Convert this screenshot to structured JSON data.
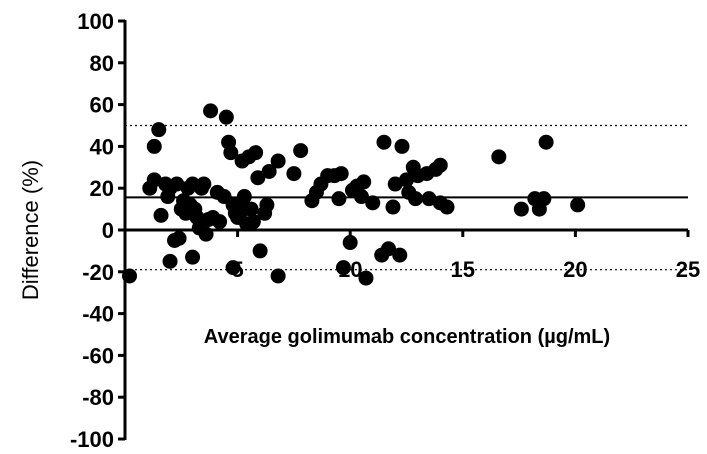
{
  "chart_data": {
    "type": "scatter",
    "xlabel": "Average golimumab concentration (µg/mL)",
    "ylabel": "Difference (%)",
    "xlim": [
      0,
      25
    ],
    "ylim": [
      -100,
      100
    ],
    "x_ticks": [
      5,
      10,
      15,
      20,
      25
    ],
    "y_ticks": [
      100,
      80,
      60,
      40,
      20,
      0,
      -20,
      -40,
      -60,
      -80,
      -100
    ],
    "x_tick_labels": [
      "5",
      "10",
      "15",
      "20",
      "25"
    ],
    "y_tick_labels": [
      "100",
      "80",
      "60",
      "40",
      "20",
      "0",
      "-20",
      "-40",
      "-60",
      "-80",
      "-100"
    ],
    "reference_lines": [
      {
        "y": 15.6,
        "style": "solid"
      },
      {
        "y": 50,
        "style": "dotted"
      },
      {
        "y": -19,
        "style": "dotted"
      }
    ],
    "grid": false,
    "marker_color": "#000000",
    "points": [
      {
        "x": 0.2,
        "y": -22
      },
      {
        "x": 1.1,
        "y": 20
      },
      {
        "x": 1.3,
        "y": 24
      },
      {
        "x": 1.3,
        "y": 40
      },
      {
        "x": 1.5,
        "y": 48
      },
      {
        "x": 1.6,
        "y": 7
      },
      {
        "x": 1.8,
        "y": 22
      },
      {
        "x": 1.9,
        "y": 16
      },
      {
        "x": 2.0,
        "y": 20
      },
      {
        "x": 2.0,
        "y": -15
      },
      {
        "x": 2.2,
        "y": -5
      },
      {
        "x": 2.3,
        "y": 22
      },
      {
        "x": 2.4,
        "y": -4
      },
      {
        "x": 2.5,
        "y": 10
      },
      {
        "x": 2.6,
        "y": 14
      },
      {
        "x": 2.7,
        "y": 8
      },
      {
        "x": 2.8,
        "y": 20
      },
      {
        "x": 2.9,
        "y": 12
      },
      {
        "x": 3.0,
        "y": 22
      },
      {
        "x": 3.0,
        "y": -13
      },
      {
        "x": 3.1,
        "y": 10
      },
      {
        "x": 3.2,
        "y": 6
      },
      {
        "x": 3.3,
        "y": 1
      },
      {
        "x": 3.4,
        "y": 20
      },
      {
        "x": 3.5,
        "y": 22
      },
      {
        "x": 3.6,
        "y": -2
      },
      {
        "x": 3.7,
        "y": 5
      },
      {
        "x": 3.8,
        "y": 57
      },
      {
        "x": 3.9,
        "y": 6
      },
      {
        "x": 4.1,
        "y": 18
      },
      {
        "x": 4.2,
        "y": 4
      },
      {
        "x": 4.4,
        "y": 16
      },
      {
        "x": 4.5,
        "y": 54
      },
      {
        "x": 4.6,
        "y": 42
      },
      {
        "x": 4.7,
        "y": 37
      },
      {
        "x": 4.8,
        "y": 12
      },
      {
        "x": 4.8,
        "y": -18
      },
      {
        "x": 4.9,
        "y": 8
      },
      {
        "x": 5.0,
        "y": 6
      },
      {
        "x": 5.1,
        "y": 12
      },
      {
        "x": 5.2,
        "y": 33
      },
      {
        "x": 5.3,
        "y": 16
      },
      {
        "x": 5.3,
        "y": 10
      },
      {
        "x": 5.4,
        "y": 3
      },
      {
        "x": 5.5,
        "y": 35
      },
      {
        "x": 5.6,
        "y": 10
      },
      {
        "x": 5.7,
        "y": 4
      },
      {
        "x": 5.8,
        "y": 37
      },
      {
        "x": 5.9,
        "y": 25
      },
      {
        "x": 6.0,
        "y": -10
      },
      {
        "x": 6.2,
        "y": 8
      },
      {
        "x": 6.3,
        "y": 12
      },
      {
        "x": 6.4,
        "y": 28
      },
      {
        "x": 6.8,
        "y": 33
      },
      {
        "x": 6.8,
        "y": -22
      },
      {
        "x": 7.5,
        "y": 27
      },
      {
        "x": 7.8,
        "y": 38
      },
      {
        "x": 8.3,
        "y": 14
      },
      {
        "x": 8.5,
        "y": 18
      },
      {
        "x": 8.7,
        "y": 22
      },
      {
        "x": 9.0,
        "y": 26
      },
      {
        "x": 9.3,
        "y": 26
      },
      {
        "x": 9.5,
        "y": 15
      },
      {
        "x": 9.6,
        "y": 27
      },
      {
        "x": 9.7,
        "y": -18
      },
      {
        "x": 10.0,
        "y": -6
      },
      {
        "x": 10.1,
        "y": 19
      },
      {
        "x": 10.3,
        "y": 21
      },
      {
        "x": 10.5,
        "y": 16
      },
      {
        "x": 10.6,
        "y": 23
      },
      {
        "x": 10.7,
        "y": -23
      },
      {
        "x": 11.0,
        "y": 13
      },
      {
        "x": 11.4,
        "y": -12
      },
      {
        "x": 11.5,
        "y": 42
      },
      {
        "x": 11.7,
        "y": -9
      },
      {
        "x": 11.9,
        "y": 11
      },
      {
        "x": 12.0,
        "y": 22
      },
      {
        "x": 12.2,
        "y": -12
      },
      {
        "x": 12.3,
        "y": 40
      },
      {
        "x": 12.5,
        "y": 24
      },
      {
        "x": 12.6,
        "y": 18
      },
      {
        "x": 12.8,
        "y": 30
      },
      {
        "x": 12.9,
        "y": 15
      },
      {
        "x": 13.0,
        "y": 26
      },
      {
        "x": 13.4,
        "y": 27
      },
      {
        "x": 13.5,
        "y": 15
      },
      {
        "x": 13.8,
        "y": 29
      },
      {
        "x": 14.0,
        "y": 31
      },
      {
        "x": 14.0,
        "y": 13
      },
      {
        "x": 14.3,
        "y": 11
      },
      {
        "x": 16.6,
        "y": 35
      },
      {
        "x": 17.6,
        "y": 10
      },
      {
        "x": 18.2,
        "y": 15
      },
      {
        "x": 18.4,
        "y": 10
      },
      {
        "x": 18.6,
        "y": 15
      },
      {
        "x": 18.7,
        "y": 42
      },
      {
        "x": 20.1,
        "y": 12
      }
    ]
  }
}
